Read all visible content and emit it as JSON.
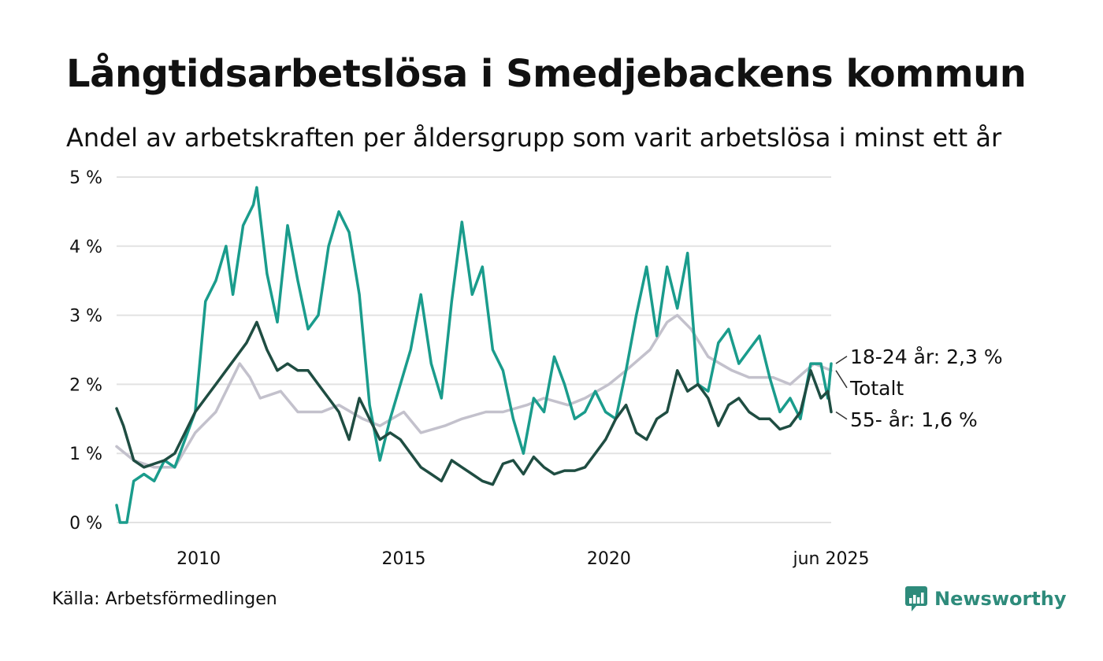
{
  "title": "Långtidsarbetslösa i Smedjebackens kommun",
  "subtitle": "Andel av arbetskraften per åldersgrupp som varit arbetslösa i minst ett år",
  "source": "Källa: Arbetsförmedlingen",
  "brand": {
    "name": "Newsworthy",
    "icon": "newsworthy-logo-icon",
    "color": "#2e8b7b"
  },
  "chart_data": {
    "type": "line",
    "ylim": [
      0,
      5
    ],
    "xlim": [
      "2008-01",
      "2025-06"
    ],
    "y_ticks": [
      {
        "value": 0,
        "label": "0 %"
      },
      {
        "value": 1,
        "label": "1 %"
      },
      {
        "value": 2,
        "label": "2 %"
      },
      {
        "value": 3,
        "label": "3 %"
      },
      {
        "value": 4,
        "label": "4 %"
      },
      {
        "value": 5,
        "label": "5 %"
      }
    ],
    "x_ticks": [
      {
        "value": "2010-01",
        "label": "2010"
      },
      {
        "value": "2015-01",
        "label": "2015"
      },
      {
        "value": "2020-01",
        "label": "2020"
      },
      {
        "value": "2025-06",
        "label": "jun 2025"
      }
    ],
    "grid": true,
    "series": [
      {
        "name": "Totalt",
        "end_label": "Totalt",
        "color": "#c3c1cc",
        "points": [
          [
            "2008-01",
            1.1
          ],
          [
            "2008-06",
            0.9
          ],
          [
            "2008-12",
            0.8
          ],
          [
            "2009-06",
            0.8
          ],
          [
            "2009-12",
            1.3
          ],
          [
            "2010-06",
            1.6
          ],
          [
            "2011-01",
            2.3
          ],
          [
            "2011-04",
            2.1
          ],
          [
            "2011-07",
            1.8
          ],
          [
            "2012-01",
            1.9
          ],
          [
            "2012-06",
            1.6
          ],
          [
            "2013-01",
            1.6
          ],
          [
            "2013-06",
            1.7
          ],
          [
            "2014-01",
            1.5
          ],
          [
            "2014-06",
            1.4
          ],
          [
            "2015-01",
            1.6
          ],
          [
            "2015-06",
            1.3
          ],
          [
            "2016-01",
            1.4
          ],
          [
            "2016-06",
            1.5
          ],
          [
            "2017-01",
            1.6
          ],
          [
            "2017-06",
            1.6
          ],
          [
            "2018-01",
            1.7
          ],
          [
            "2018-06",
            1.8
          ],
          [
            "2019-01",
            1.7
          ],
          [
            "2019-06",
            1.8
          ],
          [
            "2020-01",
            2.0
          ],
          [
            "2020-06",
            2.2
          ],
          [
            "2021-01",
            2.5
          ],
          [
            "2021-06",
            2.9
          ],
          [
            "2021-09",
            3.0
          ],
          [
            "2022-01",
            2.8
          ],
          [
            "2022-06",
            2.4
          ],
          [
            "2023-01",
            2.2
          ],
          [
            "2023-06",
            2.1
          ],
          [
            "2024-01",
            2.1
          ],
          [
            "2024-06",
            2.0
          ],
          [
            "2025-01",
            2.3
          ],
          [
            "2025-06",
            2.2
          ]
        ]
      },
      {
        "name": "18-24 år",
        "end_label": "18-24 år: 2,3 %",
        "color": "#1a9c8c",
        "points": [
          [
            "2008-01",
            0.25
          ],
          [
            "2008-02",
            0.0
          ],
          [
            "2008-04",
            0.0
          ],
          [
            "2008-06",
            0.6
          ],
          [
            "2008-09",
            0.7
          ],
          [
            "2008-12",
            0.6
          ],
          [
            "2009-03",
            0.9
          ],
          [
            "2009-06",
            0.8
          ],
          [
            "2009-09",
            1.2
          ],
          [
            "2009-12",
            1.6
          ],
          [
            "2010-03",
            3.2
          ],
          [
            "2010-06",
            3.5
          ],
          [
            "2010-09",
            4.0
          ],
          [
            "2010-11",
            3.3
          ],
          [
            "2011-02",
            4.3
          ],
          [
            "2011-05",
            4.6
          ],
          [
            "2011-06",
            4.85
          ],
          [
            "2011-09",
            3.6
          ],
          [
            "2011-12",
            2.9
          ],
          [
            "2012-03",
            4.3
          ],
          [
            "2012-06",
            3.5
          ],
          [
            "2012-09",
            2.8
          ],
          [
            "2012-12",
            3.0
          ],
          [
            "2013-03",
            4.0
          ],
          [
            "2013-06",
            4.5
          ],
          [
            "2013-09",
            4.2
          ],
          [
            "2013-12",
            3.3
          ],
          [
            "2014-03",
            1.7
          ],
          [
            "2014-06",
            0.9
          ],
          [
            "2014-09",
            1.5
          ],
          [
            "2014-12",
            2.0
          ],
          [
            "2015-03",
            2.5
          ],
          [
            "2015-06",
            3.3
          ],
          [
            "2015-09",
            2.3
          ],
          [
            "2015-12",
            1.8
          ],
          [
            "2016-03",
            3.2
          ],
          [
            "2016-06",
            4.35
          ],
          [
            "2016-09",
            3.3
          ],
          [
            "2016-12",
            3.7
          ],
          [
            "2017-03",
            2.5
          ],
          [
            "2017-06",
            2.2
          ],
          [
            "2017-09",
            1.5
          ],
          [
            "2017-12",
            1.0
          ],
          [
            "2018-03",
            1.8
          ],
          [
            "2018-06",
            1.6
          ],
          [
            "2018-09",
            2.4
          ],
          [
            "2018-12",
            2.0
          ],
          [
            "2019-03",
            1.5
          ],
          [
            "2019-06",
            1.6
          ],
          [
            "2019-09",
            1.9
          ],
          [
            "2019-12",
            1.6
          ],
          [
            "2020-03",
            1.5
          ],
          [
            "2020-06",
            2.2
          ],
          [
            "2020-09",
            3.0
          ],
          [
            "2020-12",
            3.7
          ],
          [
            "2021-03",
            2.7
          ],
          [
            "2021-06",
            3.7
          ],
          [
            "2021-09",
            3.1
          ],
          [
            "2021-12",
            3.9
          ],
          [
            "2022-03",
            2.0
          ],
          [
            "2022-06",
            1.9
          ],
          [
            "2022-09",
            2.6
          ],
          [
            "2022-12",
            2.8
          ],
          [
            "2023-03",
            2.3
          ],
          [
            "2023-06",
            2.5
          ],
          [
            "2023-09",
            2.7
          ],
          [
            "2023-12",
            2.1
          ],
          [
            "2024-03",
            1.6
          ],
          [
            "2024-06",
            1.8
          ],
          [
            "2024-09",
            1.5
          ],
          [
            "2024-12",
            2.3
          ],
          [
            "2025-03",
            2.3
          ],
          [
            "2025-05",
            1.8
          ],
          [
            "2025-06",
            2.3
          ]
        ]
      },
      {
        "name": "55- år",
        "end_label": "55- år: 1,6 %",
        "color": "#1f4d42",
        "points": [
          [
            "2008-01",
            1.65
          ],
          [
            "2008-03",
            1.4
          ],
          [
            "2008-06",
            0.9
          ],
          [
            "2008-09",
            0.8
          ],
          [
            "2008-12",
            0.85
          ],
          [
            "2009-03",
            0.9
          ],
          [
            "2009-06",
            1.0
          ],
          [
            "2009-09",
            1.3
          ],
          [
            "2009-12",
            1.6
          ],
          [
            "2010-03",
            1.8
          ],
          [
            "2010-06",
            2.0
          ],
          [
            "2010-09",
            2.2
          ],
          [
            "2010-12",
            2.4
          ],
          [
            "2011-03",
            2.6
          ],
          [
            "2011-06",
            2.9
          ],
          [
            "2011-09",
            2.5
          ],
          [
            "2011-12",
            2.2
          ],
          [
            "2012-03",
            2.3
          ],
          [
            "2012-06",
            2.2
          ],
          [
            "2012-09",
            2.2
          ],
          [
            "2012-12",
            2.0
          ],
          [
            "2013-03",
            1.8
          ],
          [
            "2013-06",
            1.6
          ],
          [
            "2013-09",
            1.2
          ],
          [
            "2013-12",
            1.8
          ],
          [
            "2014-03",
            1.5
          ],
          [
            "2014-06",
            1.2
          ],
          [
            "2014-09",
            1.3
          ],
          [
            "2014-12",
            1.2
          ],
          [
            "2015-03",
            1.0
          ],
          [
            "2015-06",
            0.8
          ],
          [
            "2015-09",
            0.7
          ],
          [
            "2015-12",
            0.6
          ],
          [
            "2016-03",
            0.9
          ],
          [
            "2016-06",
            0.8
          ],
          [
            "2016-09",
            0.7
          ],
          [
            "2016-12",
            0.6
          ],
          [
            "2017-03",
            0.55
          ],
          [
            "2017-06",
            0.85
          ],
          [
            "2017-09",
            0.9
          ],
          [
            "2017-12",
            0.7
          ],
          [
            "2018-03",
            0.95
          ],
          [
            "2018-06",
            0.8
          ],
          [
            "2018-09",
            0.7
          ],
          [
            "2018-12",
            0.75
          ],
          [
            "2019-03",
            0.75
          ],
          [
            "2019-06",
            0.8
          ],
          [
            "2019-09",
            1.0
          ],
          [
            "2019-12",
            1.2
          ],
          [
            "2020-03",
            1.5
          ],
          [
            "2020-06",
            1.7
          ],
          [
            "2020-09",
            1.3
          ],
          [
            "2020-12",
            1.2
          ],
          [
            "2021-03",
            1.5
          ],
          [
            "2021-06",
            1.6
          ],
          [
            "2021-09",
            2.2
          ],
          [
            "2021-12",
            1.9
          ],
          [
            "2022-03",
            2.0
          ],
          [
            "2022-06",
            1.8
          ],
          [
            "2022-09",
            1.4
          ],
          [
            "2022-12",
            1.7
          ],
          [
            "2023-03",
            1.8
          ],
          [
            "2023-06",
            1.6
          ],
          [
            "2023-09",
            1.5
          ],
          [
            "2023-12",
            1.5
          ],
          [
            "2024-03",
            1.35
          ],
          [
            "2024-06",
            1.4
          ],
          [
            "2024-09",
            1.6
          ],
          [
            "2024-12",
            2.2
          ],
          [
            "2025-03",
            1.8
          ],
          [
            "2025-05",
            1.9
          ],
          [
            "2025-06",
            1.6
          ]
        ]
      }
    ]
  }
}
